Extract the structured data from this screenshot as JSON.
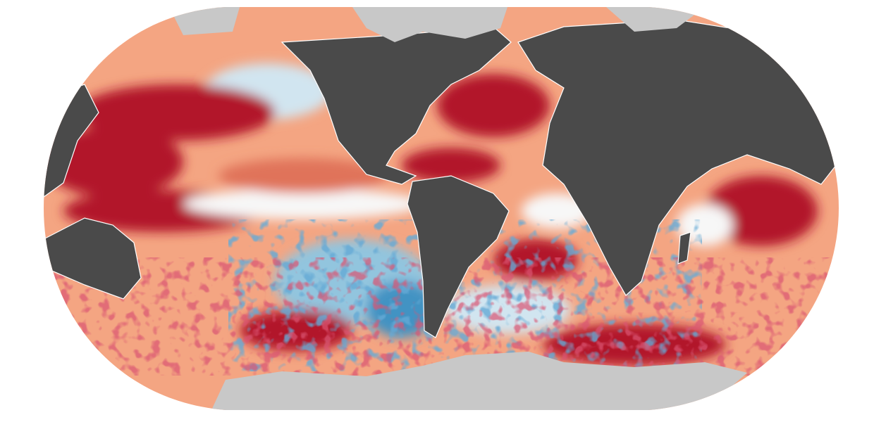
{
  "map": {
    "projection": "robinson",
    "colors": {
      "land": "#4a4a4a",
      "ice": "#c8c8c8",
      "background": "#ffffff",
      "anomaly_scale": [
        "#2166ac",
        "#4393c3",
        "#92c5de",
        "#d1e5f0",
        "#f7f7f7",
        "#fddbc7",
        "#f4a582",
        "#e0735a",
        "#b2182b"
      ]
    }
  }
}
